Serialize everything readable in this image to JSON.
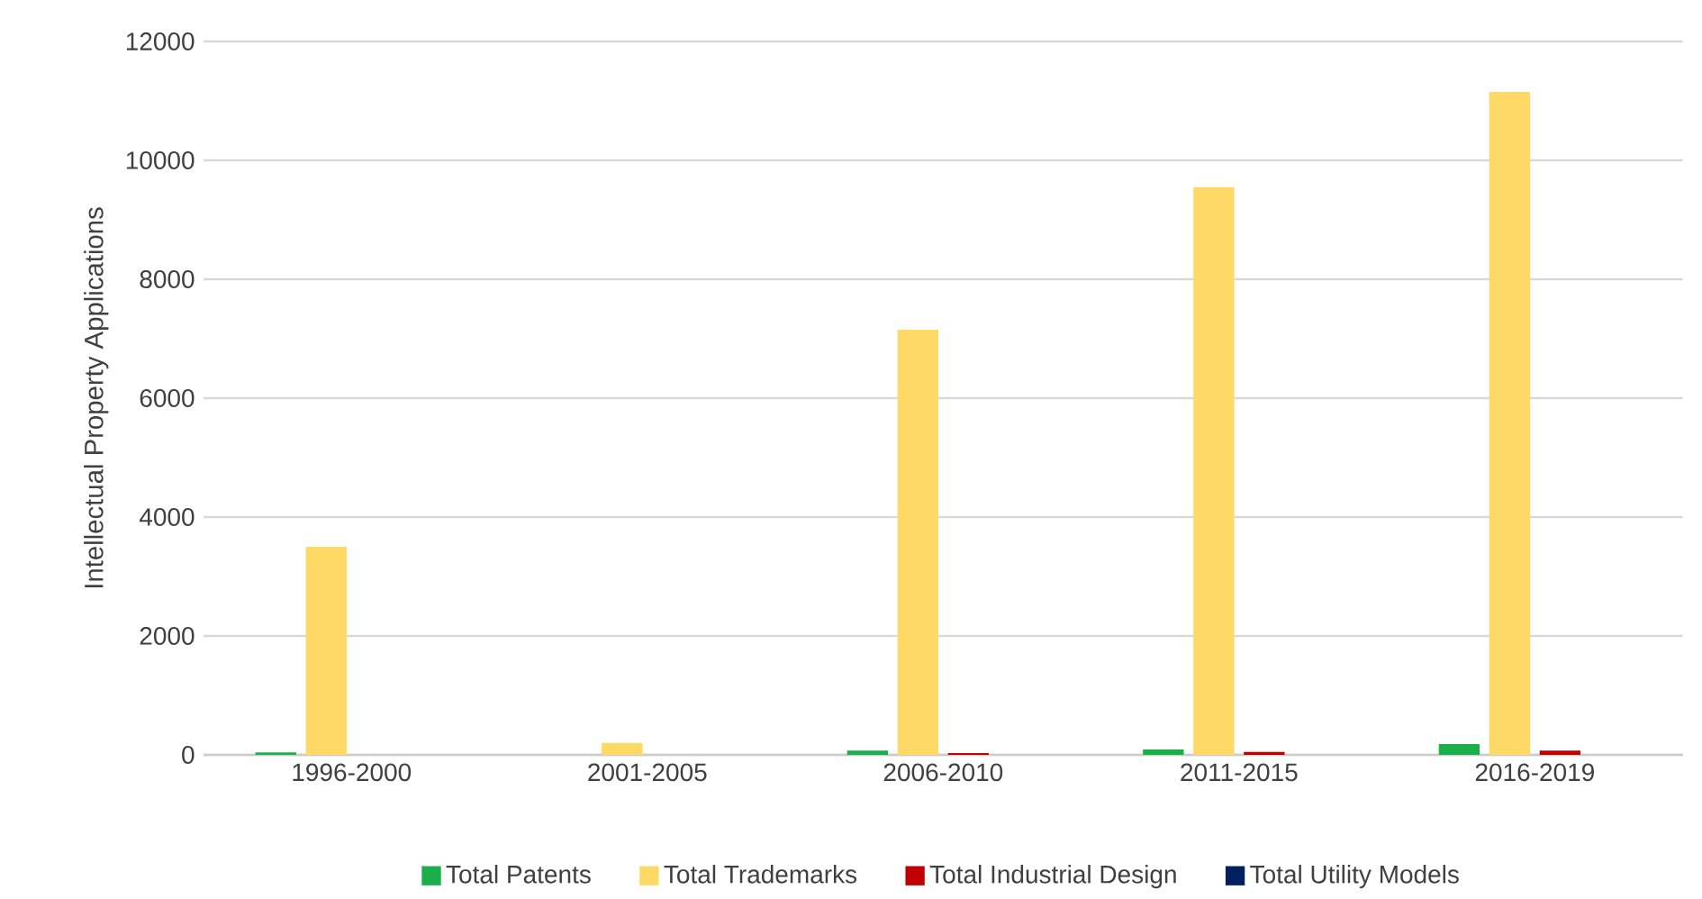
{
  "chart_data": {
    "type": "bar",
    "ylabel": "Intellectual Property Applications",
    "categories": [
      "1996-2000",
      "2001-2005",
      "2006-2010",
      "2011-2015",
      "2016-2019"
    ],
    "series": [
      {
        "name": "Total Patents",
        "color": "#1aaf4b",
        "values": [
          40,
          0,
          70,
          90,
          180
        ]
      },
      {
        "name": "Total Trademarks",
        "color": "#ffd966",
        "values": [
          3500,
          200,
          7150,
          9550,
          11150
        ]
      },
      {
        "name": "Total Industrial Design",
        "color": "#c00000",
        "values": [
          0,
          0,
          30,
          50,
          70
        ]
      },
      {
        "name": "Total Utility Models",
        "color": "#002060",
        "values": [
          0,
          0,
          0,
          0,
          0
        ]
      }
    ],
    "ylim": [
      0,
      12000
    ],
    "yticks": [
      0,
      2000,
      4000,
      6000,
      8000,
      10000,
      12000
    ],
    "grid": "y",
    "legend": "bottom"
  }
}
